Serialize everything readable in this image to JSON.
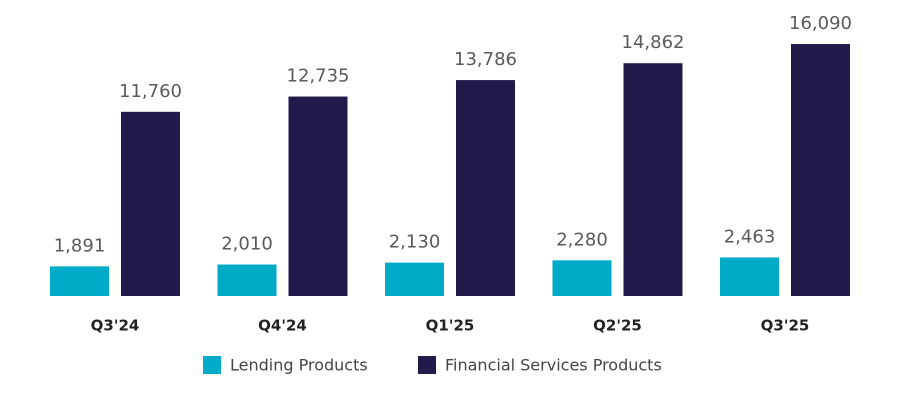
{
  "chart_data": {
    "type": "bar",
    "categories": [
      "Q3'24",
      "Q4'24",
      "Q1'25",
      "Q2'25",
      "Q3'25"
    ],
    "series": [
      {
        "name": "Lending Products",
        "color": "#00abc8",
        "values": [
          1891,
          2010,
          2130,
          2280,
          2463
        ],
        "value_labels": [
          "1,891",
          "2,010",
          "2,130",
          "2,280",
          "2,463"
        ]
      },
      {
        "name": "Financial Services Products",
        "color": "#211a4a",
        "values": [
          11760,
          12735,
          13786,
          14862,
          16090
        ],
        "value_labels": [
          "11,760",
          "12,735",
          "13,786",
          "14,862",
          "16,090"
        ]
      }
    ],
    "legend": "bottom"
  }
}
